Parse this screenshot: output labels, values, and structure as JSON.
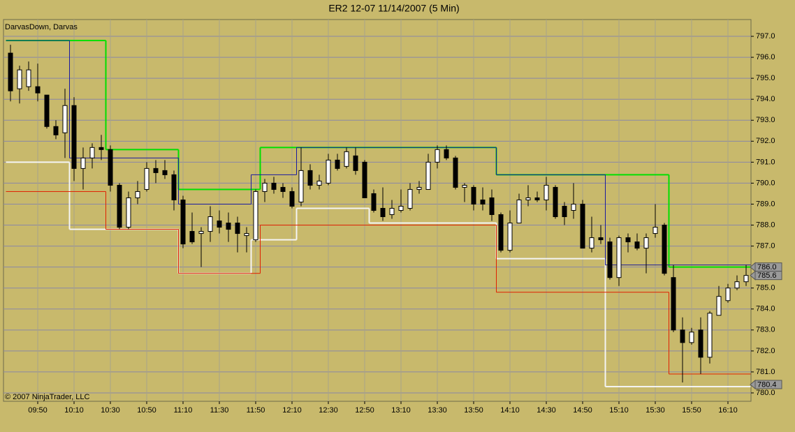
{
  "chart_data": {
    "type": "candlestick",
    "title": "ER2 12-07  11/14/2007  (5 Min)",
    "indicator_label": "DarvasDown, Darvas",
    "copyright": "© 2007 NinjaTrader, LLC",
    "categories": [
      null,
      null,
      null,
      "09:50",
      null,
      null,
      null,
      "10:10",
      null,
      null,
      null,
      "10:30",
      null,
      null,
      null,
      "10:50",
      null,
      null,
      null,
      "11:10",
      null,
      null,
      null,
      "11:30",
      null,
      null,
      null,
      "11:50",
      null,
      null,
      null,
      "12:10",
      null,
      null,
      null,
      "12:30",
      null,
      null,
      null,
      "12:50",
      null,
      null,
      null,
      "13:10",
      null,
      null,
      null,
      "13:30",
      null,
      null,
      null,
      "13:50",
      null,
      null,
      null,
      "14:10",
      null,
      null,
      null,
      "14:30",
      null,
      null,
      null,
      "14:50",
      null,
      null,
      null,
      "15:10",
      null,
      null,
      null,
      "15:30",
      null,
      null,
      null,
      "15:50",
      null,
      null,
      null,
      "16:10",
      null,
      null
    ],
    "open": [
      796.2,
      794.5,
      794.6,
      794.6,
      794.2,
      792.7,
      792.4,
      793.7,
      790.7,
      791.2,
      791.7,
      791.6,
      789.9,
      787.9,
      789.3,
      789.7,
      790.7,
      790.6,
      790.4,
      789.2,
      787.7,
      787.6,
      787.7,
      788.2,
      788.1,
      788.1,
      787.5,
      787.3,
      789.6,
      790.0,
      789.8,
      789.6,
      789.1,
      790.6,
      789.9,
      790.0,
      791.1,
      790.8,
      791.3,
      791.0,
      789.5,
      788.8,
      788.5,
      788.7,
      788.8,
      789.7,
      789.7,
      791.0,
      791.6,
      791.2,
      789.8,
      789.8,
      789.2,
      789.3,
      788.5,
      786.8,
      788.1,
      789.2,
      789.3,
      789.2,
      789.8,
      788.9,
      788.7,
      789.0,
      786.9,
      787.4,
      787.2,
      785.5,
      787.4,
      787.2,
      786.9,
      787.6,
      788.0,
      785.5,
      783.0,
      782.4,
      783.0,
      781.7,
      783.7,
      784.4,
      785.0,
      785.3
    ],
    "high": [
      796.6,
      795.6,
      795.8,
      795.7,
      794.2,
      793.0,
      794.5,
      794.1,
      791.7,
      791.9,
      792.3,
      791.8,
      790.0,
      789.6,
      790.1,
      791.0,
      791.1,
      791.1,
      790.6,
      789.4,
      788.6,
      787.9,
      788.9,
      788.7,
      788.6,
      788.4,
      787.9,
      789.7,
      790.2,
      790.3,
      790.0,
      789.8,
      791.7,
      790.9,
      790.4,
      791.4,
      791.4,
      791.7,
      791.7,
      791.1,
      789.7,
      789.8,
      789.2,
      789.7,
      790.0,
      790.1,
      791.4,
      791.8,
      791.8,
      791.3,
      790.0,
      789.9,
      789.8,
      789.7,
      788.6,
      788.7,
      789.5,
      789.9,
      789.6,
      790.3,
      789.9,
      789.1,
      790.0,
      789.2,
      788.4,
      788.0,
      787.4,
      787.5,
      787.6,
      787.6,
      787.6,
      789.0,
      788.1,
      786.1,
      783.6,
      783.1,
      783.6,
      783.9,
      785.1,
      785.2,
      785.6,
      786.1
    ],
    "low": [
      793.9,
      793.8,
      794.4,
      793.9,
      792.6,
      792.1,
      791.2,
      790.1,
      789.7,
      790.7,
      791.1,
      789.6,
      787.8,
      787.8,
      789.0,
      789.6,
      790.0,
      790.2,
      788.7,
      786.9,
      787.1,
      786.0,
      787.2,
      787.6,
      787.2,
      786.7,
      786.7,
      787.2,
      789.1,
      789.5,
      789.3,
      788.8,
      788.9,
      789.7,
      789.7,
      789.9,
      790.6,
      790.7,
      790.4,
      789.3,
      788.6,
      788.2,
      788.3,
      788.6,
      788.7,
      789.5,
      789.7,
      790.7,
      791.1,
      789.7,
      789.1,
      788.7,
      788.7,
      788.2,
      786.7,
      786.7,
      788.1,
      788.9,
      789.1,
      788.7,
      788.3,
      788.0,
      788.3,
      786.9,
      786.7,
      787.1,
      785.4,
      785.1,
      786.7,
      786.8,
      785.7,
      787.4,
      785.6,
      782.9,
      780.5,
      782.3,
      780.9,
      781.4,
      783.7,
      784.3,
      784.9,
      785.1
    ],
    "close": [
      794.4,
      795.4,
      795.4,
      794.3,
      792.7,
      792.3,
      793.7,
      790.7,
      791.2,
      791.7,
      791.6,
      789.9,
      787.9,
      789.3,
      789.6,
      790.7,
      790.5,
      790.4,
      789.2,
      787.1,
      787.2,
      787.7,
      788.4,
      787.9,
      787.8,
      787.6,
      787.6,
      789.6,
      790.0,
      789.7,
      789.6,
      788.9,
      790.6,
      789.9,
      790.1,
      791.1,
      790.7,
      791.5,
      790.6,
      789.3,
      788.7,
      788.4,
      788.8,
      788.9,
      789.7,
      789.8,
      791.0,
      791.6,
      791.2,
      789.8,
      789.9,
      789.0,
      789.0,
      788.5,
      786.8,
      788.1,
      789.2,
      789.3,
      789.2,
      789.9,
      788.4,
      788.4,
      789.0,
      786.9,
      787.4,
      787.3,
      785.5,
      787.4,
      787.2,
      786.9,
      787.4,
      787.9,
      785.7,
      783.0,
      782.4,
      782.9,
      781.7,
      783.8,
      784.6,
      785.0,
      785.3,
      785.6
    ],
    "up_color": "#ffffff",
    "down_color": "#000000",
    "overlays": [
      {
        "color": "#00e000",
        "width": 2,
        "values": [
          796.8,
          796.8,
          796.8,
          796.8,
          796.8,
          796.8,
          796.8,
          796.8,
          796.8,
          796.8,
          796.8,
          791.6,
          791.6,
          791.6,
          791.6,
          791.6,
          791.6,
          791.6,
          791.6,
          789.7,
          789.7,
          789.7,
          789.7,
          789.7,
          789.7,
          789.7,
          789.7,
          789.7,
          791.7,
          791.7,
          791.7,
          791.7,
          791.7,
          791.7,
          791.7,
          791.7,
          791.7,
          791.7,
          791.7,
          791.7,
          791.7,
          791.7,
          791.7,
          791.7,
          791.7,
          791.7,
          791.7,
          791.7,
          791.7,
          791.7,
          791.7,
          791.7,
          791.7,
          791.7,
          790.4,
          790.4,
          790.4,
          790.4,
          790.4,
          790.4,
          790.4,
          790.4,
          790.4,
          790.4,
          790.4,
          790.4,
          790.4,
          790.4,
          790.4,
          790.4,
          790.4,
          790.4,
          790.4,
          786.0,
          786.0,
          786.0,
          786.0,
          786.0,
          786.0,
          786.0,
          786.0,
          786.0
        ]
      },
      {
        "color": "#f4f4f4",
        "width": 2,
        "values": [
          791.0,
          791.0,
          791.0,
          791.0,
          791.0,
          791.0,
          791.0,
          787.8,
          787.8,
          787.8,
          787.8,
          787.8,
          787.8,
          787.8,
          787.8,
          787.8,
          787.8,
          787.8,
          787.8,
          785.7,
          785.7,
          785.7,
          785.7,
          785.7,
          785.7,
          785.7,
          785.7,
          787.3,
          787.3,
          787.3,
          787.3,
          787.3,
          788.8,
          788.8,
          788.8,
          788.8,
          788.8,
          788.8,
          788.8,
          788.8,
          788.1,
          788.1,
          788.1,
          788.1,
          788.1,
          788.1,
          788.1,
          788.1,
          788.1,
          788.1,
          788.1,
          788.1,
          788.1,
          788.1,
          786.4,
          786.4,
          786.4,
          786.4,
          786.4,
          786.4,
          786.4,
          786.4,
          786.4,
          786.4,
          786.4,
          786.4,
          780.3,
          780.3,
          780.3,
          780.3,
          780.3,
          780.3,
          780.3,
          780.3,
          780.3,
          780.3,
          780.3,
          780.3,
          780.3,
          780.3,
          780.3,
          780.3
        ]
      },
      {
        "color": "#e02000",
        "width": 1,
        "values": [
          789.6,
          789.6,
          789.6,
          789.6,
          789.6,
          789.6,
          789.6,
          789.6,
          789.6,
          789.6,
          789.6,
          787.8,
          787.8,
          787.8,
          787.8,
          787.8,
          787.8,
          787.8,
          787.8,
          785.7,
          785.7,
          785.7,
          785.7,
          785.7,
          785.7,
          785.7,
          785.7,
          785.7,
          788.0,
          788.0,
          788.0,
          788.0,
          788.0,
          788.0,
          788.0,
          788.0,
          788.0,
          788.0,
          788.0,
          788.0,
          788.0,
          788.0,
          788.0,
          788.0,
          788.0,
          788.0,
          788.0,
          788.0,
          788.0,
          788.0,
          788.0,
          788.0,
          788.0,
          788.0,
          784.8,
          784.8,
          784.8,
          784.8,
          784.8,
          784.8,
          784.8,
          784.8,
          784.8,
          784.8,
          784.8,
          784.8,
          784.8,
          784.8,
          784.8,
          784.8,
          784.8,
          784.8,
          784.8,
          780.9,
          780.9,
          780.9,
          780.9,
          780.9,
          780.9,
          780.9,
          780.9,
          780.9
        ]
      },
      {
        "color": "#1a1aa0",
        "width": 1,
        "values": [
          796.8,
          796.8,
          796.8,
          796.8,
          796.8,
          796.8,
          796.8,
          791.2,
          791.2,
          791.2,
          791.2,
          791.2,
          791.2,
          791.2,
          791.2,
          791.2,
          791.2,
          791.2,
          791.2,
          789.0,
          789.0,
          789.0,
          789.0,
          789.0,
          789.0,
          789.0,
          789.0,
          790.4,
          790.4,
          790.4,
          790.4,
          790.4,
          791.7,
          791.7,
          791.7,
          791.7,
          791.7,
          791.7,
          791.7,
          791.7,
          791.7,
          791.7,
          791.7,
          791.7,
          791.7,
          791.7,
          791.7,
          791.7,
          791.7,
          791.7,
          791.7,
          791.7,
          791.7,
          791.7,
          790.4,
          790.4,
          790.4,
          790.4,
          790.4,
          790.4,
          790.4,
          790.4,
          790.4,
          790.4,
          790.4,
          790.4,
          786.1,
          786.1,
          786.1,
          786.1,
          786.1,
          786.1,
          786.1,
          786.1,
          786.1,
          786.1,
          786.1,
          786.1,
          786.1,
          786.1,
          786.1,
          786.1
        ]
      }
    ],
    "price_markers": [
      {
        "value": 786.0,
        "label": "786.0"
      },
      {
        "value": 785.6,
        "label": "785.6"
      },
      {
        "value": 780.4,
        "label": "780.4"
      }
    ],
    "ylim": [
      779.6,
      797.8
    ],
    "yticks": [
      {
        "value": 780,
        "label": "780.0"
      },
      {
        "value": 781,
        "label": "781.0"
      },
      {
        "value": 782,
        "label": "782.0"
      },
      {
        "value": 783,
        "label": "783.0"
      },
      {
        "value": 784,
        "label": "784.0"
      },
      {
        "value": 785,
        "label": "785.0"
      },
      {
        "value": 786,
        "label": "786.0"
      },
      {
        "value": 787,
        "label": "787.0"
      },
      {
        "value": 788,
        "label": "788.0"
      },
      {
        "value": 789,
        "label": "789.0"
      },
      {
        "value": 790,
        "label": "790.0"
      },
      {
        "value": 791,
        "label": "791.0"
      },
      {
        "value": 792,
        "label": "792.0"
      },
      {
        "value": 793,
        "label": "793.0"
      },
      {
        "value": 794,
        "label": "794.0"
      },
      {
        "value": 795,
        "label": "795.0"
      },
      {
        "value": 796,
        "label": "796.0"
      },
      {
        "value": 797,
        "label": "797.0"
      }
    ],
    "grid": true
  }
}
